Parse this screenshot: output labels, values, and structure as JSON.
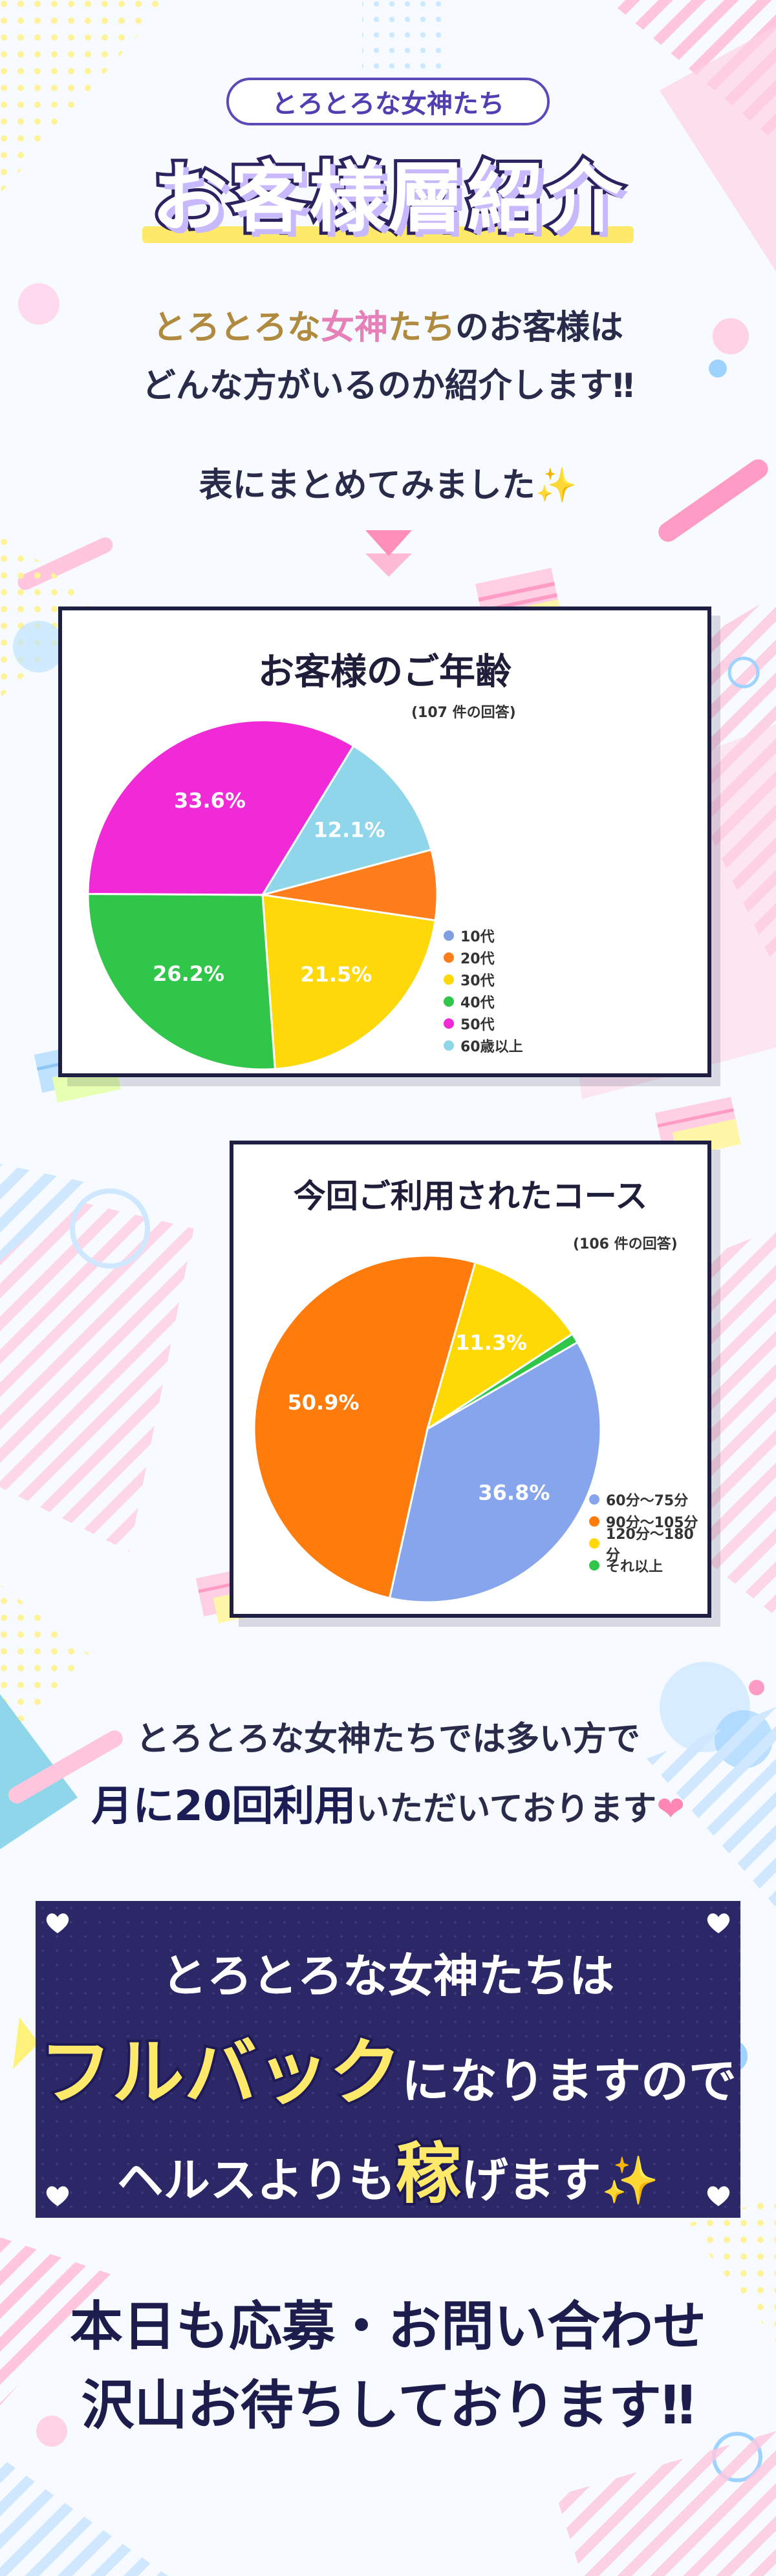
{
  "header": {
    "subtitle": "とろとろな女神たち",
    "title": "お客様層紹介"
  },
  "intro": {
    "line1_brand_a": "とろとろな",
    "line1_brand_b": "女神",
    "line1_brand_c": "たち",
    "line1_rest": "のお客様は",
    "line2": "どんな方がいるのか紹介します‼",
    "line3": "表にまとめてみました✨"
  },
  "age_chart": {
    "title": "お客様のご年齢",
    "note": "(107 件の回答)"
  },
  "course_chart": {
    "title": "今回ご利用されたコース",
    "note": "(106 件の回答)"
  },
  "chart_data": [
    {
      "type": "pie",
      "title": "お客様のご年齢",
      "categories": [
        "10代",
        "20代",
        "30代",
        "40代",
        "50代",
        "60歳以上"
      ],
      "values": [
        0,
        6.5,
        21.5,
        26.2,
        33.6,
        12.1
      ],
      "data_labels": [
        "",
        "",
        "21.5%",
        "26.2%",
        "33.6%",
        "12.1%"
      ],
      "colors": [
        "#7f9fe0",
        "#ff7d1a",
        "#ffd80a",
        "#2fc64a",
        "#ef2ad6",
        "#8fd6ea"
      ],
      "legend": "right-bottom"
    },
    {
      "type": "pie",
      "title": "今回ご利用されたコース",
      "categories": [
        "60分～75分",
        "90分～105分",
        "120分～180分",
        "それ以上"
      ],
      "values": [
        36.8,
        50.9,
        11.3,
        0.9
      ],
      "data_labels": [
        "36.8%",
        "50.9%",
        "11.3%",
        ""
      ],
      "colors": [
        "#86a5ec",
        "#ff7c0c",
        "#ffd905",
        "#2fc64a"
      ],
      "legend": "right-bottom"
    }
  ],
  "middle": {
    "line1": "とろとろな女神たちでは多い方で",
    "line2_bold": "月に20回利用",
    "line2_rest": "いただいております",
    "heart": "❤"
  },
  "banner": {
    "line1": "とろとろな女神たちは",
    "line2_big": "フルバック",
    "line2_rest": "になりますので",
    "line3_a": "ヘルスよりも",
    "line3_big": "稼",
    "line3_b": "げます✨"
  },
  "closing": {
    "line1": "本日も応募・お問い合わせ",
    "line2": "沢山お待ちしております‼"
  }
}
